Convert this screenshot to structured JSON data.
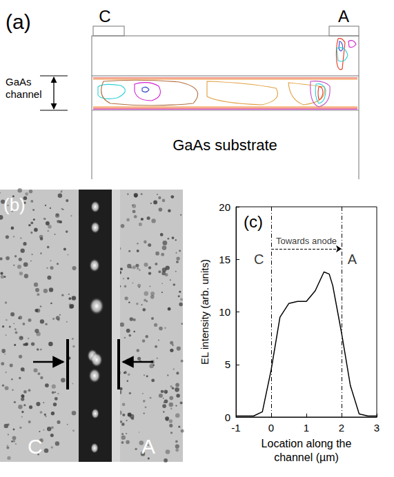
{
  "chart_data": {
    "type": "line",
    "title": "(c)",
    "x_label": "Location along the channel (µm)",
    "y_label": "EL intensity (arb. units)",
    "x": [
      -1,
      -0.5,
      -0.25,
      0,
      0.25,
      0.5,
      0.75,
      1,
      1.25,
      1.5,
      1.65,
      1.75,
      2,
      2.25,
      2.5,
      2.75,
      3
    ],
    "values": [
      0.1,
      0.1,
      0.5,
      4.5,
      9.5,
      10.8,
      11,
      11,
      12,
      13.8,
      13.6,
      12.5,
      8,
      3,
      0.3,
      0.1,
      0.1
    ],
    "color": "#000000",
    "xlim": [
      -1,
      3
    ],
    "xticks": [
      -1,
      0,
      1,
      2,
      3
    ],
    "ylim": [
      0,
      20
    ],
    "yticks": [
      0,
      5,
      10,
      15,
      20
    ],
    "grid": false,
    "vlines": [
      0,
      2
    ],
    "arrow": {
      "text": "Towards anode",
      "from": 0,
      "to": 2,
      "y": 16
    },
    "annotations": [
      {
        "text": "C",
        "x": -0.35,
        "y": 15
      },
      {
        "text": "A",
        "x": 2.3,
        "y": 15
      }
    ]
  },
  "diagram": {
    "title": "(a)",
    "contacts": [
      "C",
      "A"
    ],
    "channel": "GaAs channel",
    "substrate": "GaAs substrate"
  },
  "image": {
    "title": "(b)",
    "labels": [
      "C",
      "A"
    ]
  }
}
